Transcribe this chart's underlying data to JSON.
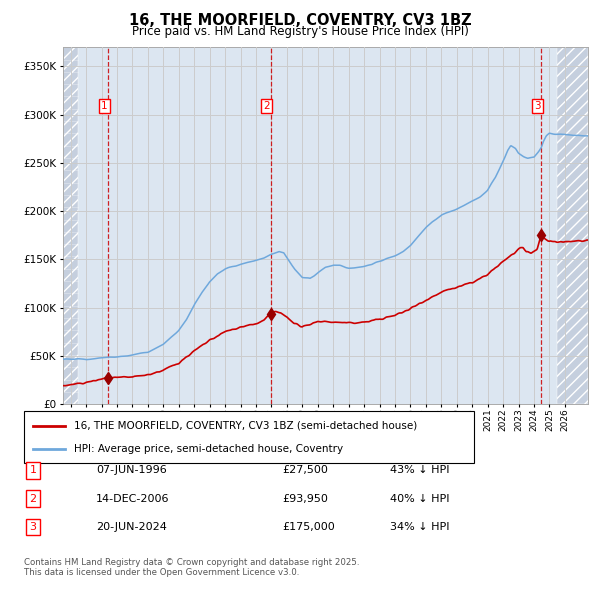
{
  "title": "16, THE MOORFIELD, COVENTRY, CV3 1BZ",
  "subtitle": "Price paid vs. HM Land Registry's House Price Index (HPI)",
  "footer": "Contains HM Land Registry data © Crown copyright and database right 2025.\nThis data is licensed under the Open Government Licence v3.0.",
  "legend_line1": "16, THE MOORFIELD, COVENTRY, CV3 1BZ (semi-detached house)",
  "legend_line2": "HPI: Average price, semi-detached house, Coventry",
  "sales": [
    {
      "label": "1",
      "date_str": "07-JUN-1996",
      "price": 27500,
      "pct": "43%",
      "year": 1996.44
    },
    {
      "label": "2",
      "date_str": "14-DEC-2006",
      "price": 93950,
      "pct": "40%",
      "year": 2006.95
    },
    {
      "label": "3",
      "date_str": "20-JUN-2024",
      "price": 175000,
      "pct": "34%",
      "year": 2024.47
    }
  ],
  "hpi_color": "#6fa8dc",
  "price_color": "#cc0000",
  "marker_color": "#990000",
  "vline_color": "#cc0000",
  "grid_color": "#cccccc",
  "ylim": [
    0,
    370000
  ],
  "yticks": [
    0,
    50000,
    100000,
    150000,
    200000,
    250000,
    300000,
    350000
  ],
  "xlim_start": 1993.5,
  "xlim_end": 2027.5,
  "hatch_left_end": 1994.5,
  "hatch_right_start": 2025.5,
  "bg_color": "#dce6f1",
  "hatch_color": "#c5cfde"
}
